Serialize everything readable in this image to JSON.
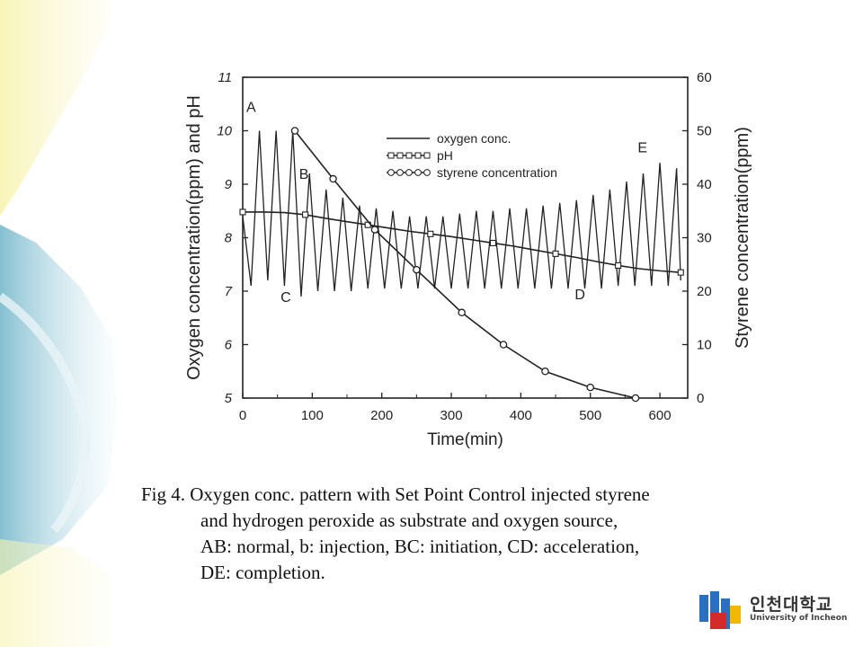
{
  "chart_data": {
    "type": "line",
    "xlabel": "Time(min)",
    "ylabel_left": "Oxygen concentration(ppm) and pH",
    "ylabel_right": "Styrene concentration(ppm)",
    "xlim": [
      0,
      640
    ],
    "ylim_left": [
      5,
      11
    ],
    "ylim_right": [
      0,
      60
    ],
    "x_ticks": [
      0,
      100,
      200,
      300,
      400,
      500,
      600
    ],
    "y_left_ticks": [
      5,
      6,
      7,
      8,
      9,
      10,
      11
    ],
    "y_right_ticks": [
      0,
      10,
      20,
      30,
      40,
      50,
      60
    ],
    "legend": {
      "placement": "top-center",
      "entries": [
        "oxygen conc.",
        "pH",
        "styrene concentration"
      ]
    },
    "annotations": [
      {
        "text": "A",
        "x": 12,
        "y": 10.35
      },
      {
        "text": "B",
        "x": 88,
        "y": 9.1
      },
      {
        "text": "C",
        "x": 62,
        "y": 6.8
      },
      {
        "text": "D",
        "x": 485,
        "y": 6.85
      },
      {
        "text": "E",
        "x": 575,
        "y": 9.6
      }
    ],
    "series": [
      {
        "name": "oxygen conc.",
        "axis": "left",
        "x": [
          0,
          12,
          24,
          36,
          48,
          60,
          72,
          84,
          96,
          108,
          120,
          132,
          144,
          156,
          168,
          180,
          192,
          204,
          216,
          228,
          240,
          252,
          264,
          276,
          288,
          300,
          312,
          324,
          336,
          348,
          360,
          372,
          384,
          396,
          408,
          420,
          432,
          444,
          456,
          468,
          480,
          492,
          504,
          516,
          528,
          540,
          552,
          564,
          576,
          588,
          600,
          612,
          624,
          630
        ],
        "values": [
          8.4,
          7.1,
          10.0,
          7.2,
          10.0,
          7.1,
          10.0,
          6.9,
          9.2,
          7.0,
          8.9,
          7.0,
          8.75,
          7.0,
          8.6,
          7.05,
          8.55,
          7.05,
          8.5,
          7.05,
          8.4,
          7.05,
          8.4,
          7.05,
          8.4,
          7.05,
          8.45,
          7.05,
          8.5,
          7.05,
          8.5,
          7.05,
          8.55,
          7.05,
          8.55,
          7.05,
          8.6,
          7.05,
          8.65,
          7.05,
          8.7,
          7.05,
          8.8,
          7.05,
          8.9,
          7.1,
          9.05,
          7.1,
          9.2,
          7.1,
          9.4,
          7.1,
          9.3,
          7.2
        ]
      },
      {
        "name": "pH",
        "axis": "left",
        "x": [
          0,
          30,
          60,
          90,
          120,
          150,
          180,
          210,
          240,
          270,
          300,
          330,
          360,
          390,
          420,
          450,
          480,
          510,
          540,
          570,
          600,
          630
        ],
        "values": [
          8.48,
          8.48,
          8.47,
          8.43,
          8.36,
          8.3,
          8.24,
          8.18,
          8.12,
          8.07,
          8.02,
          7.96,
          7.9,
          7.84,
          7.77,
          7.7,
          7.63,
          7.55,
          7.48,
          7.42,
          7.38,
          7.35
        ]
      },
      {
        "name": "styrene concentration",
        "axis": "right",
        "x": [
          75,
          130,
          190,
          250,
          315,
          375,
          435,
          500,
          565
        ],
        "values": [
          50,
          41,
          31.5,
          24,
          16,
          10,
          5,
          2,
          0
        ]
      }
    ]
  },
  "caption": {
    "line1": "Fig 4. Oxygen conc. pattern with Set Point Control injected styrene",
    "line2": "and hydrogen peroxide as substrate and oxygen source,",
    "line3": "AB: normal, b: injection, BC: initiation, CD: acceleration,",
    "line4": "DE: completion."
  },
  "logo": {
    "korean": "인천대학교",
    "english": "University of Incheon",
    "colors": {
      "blue": "#2a6fc0",
      "red": "#d42a2a",
      "yellow": "#f2b800"
    }
  },
  "colors": {
    "ink": "#222222",
    "background": "#ffffff",
    "deco_teal": "#8ec6d6",
    "deco_yellow": "#f3ee9a"
  }
}
